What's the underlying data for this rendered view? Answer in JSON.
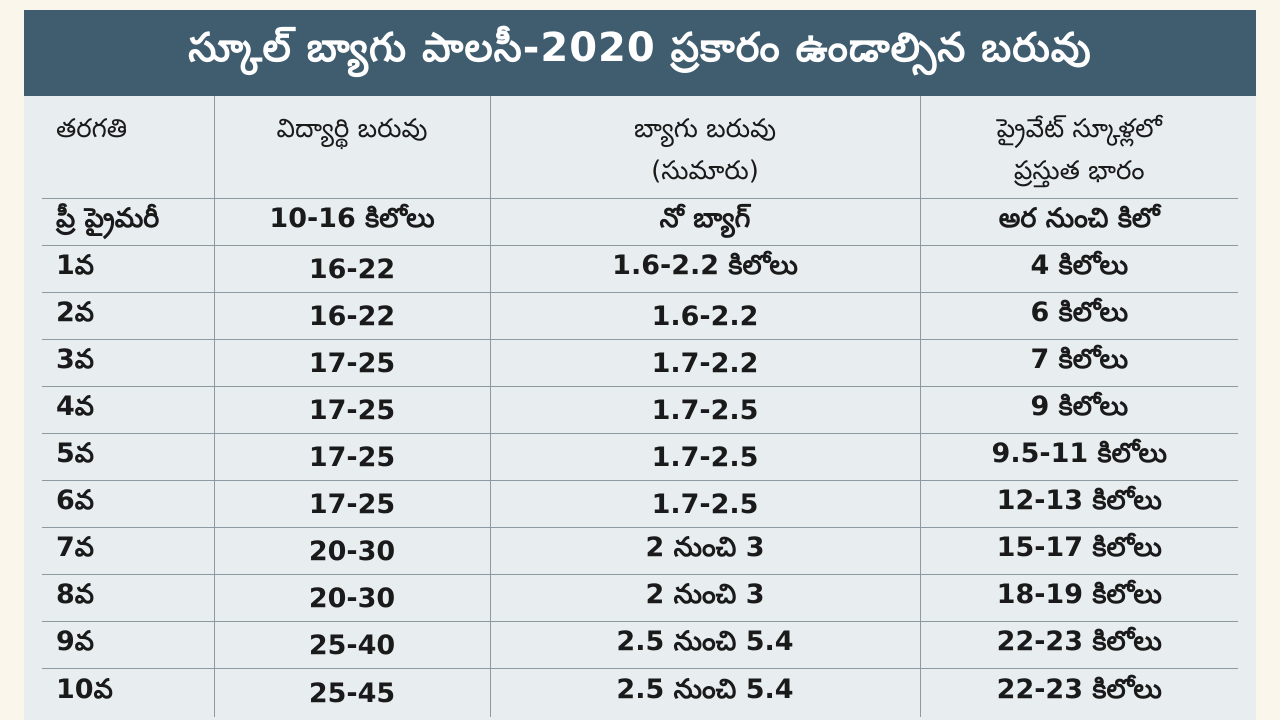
{
  "title": "స్కూల్ బ్యాగు పాలసీ-2020 ప్రకారం ఉండాల్సిన బరువు",
  "colors": {
    "banner": "#3f5d6f",
    "panel": "#e8eef0",
    "grid": "#8d9aa2",
    "text": "#1a1a1a"
  },
  "table": {
    "headers": [
      {
        "lines": [
          "తరగతి"
        ]
      },
      {
        "lines": [
          "విద్యార్థి బరువు"
        ]
      },
      {
        "lines": [
          "బ్యాగు బరువు",
          "(సుమారు)"
        ]
      },
      {
        "lines": [
          "ప్రైవేట్ స్కూళ్లలో",
          "ప్రస్తుత భారం"
        ]
      }
    ],
    "rows": [
      [
        "ప్రీ ప్రైమరీ",
        "10-16 కిలోలు",
        "నో బ్యాగ్",
        "అర నుంచి కిలో"
      ],
      [
        "1వ",
        "16-22",
        "1.6-2.2 కిలోలు",
        "4 కిలోలు"
      ],
      [
        "2వ",
        "16-22",
        "1.6-2.2",
        "6 కిలోలు"
      ],
      [
        "3వ",
        "17-25",
        "1.7-2.2",
        "7 కిలోలు"
      ],
      [
        "4వ",
        "17-25",
        "1.7-2.5",
        "9 కిలోలు"
      ],
      [
        "5వ",
        "17-25",
        "1.7-2.5",
        "9.5-11 కిలోలు"
      ],
      [
        "6వ",
        "17-25",
        "1.7-2.5",
        "12-13 కిలోలు"
      ],
      [
        "7వ",
        "20-30",
        "2 నుంచి 3",
        "15-17 కిలోలు"
      ],
      [
        "8వ",
        "20-30",
        "2 నుంచి 3",
        "18-19 కిలోలు"
      ],
      [
        "9వ",
        "25-40",
        "2.5 నుంచి 5.4",
        "22-23 కిలోలు"
      ],
      [
        "10వ",
        "25-45",
        "2.5 నుంచి 5.4",
        "22-23 కిలోలు"
      ]
    ]
  }
}
